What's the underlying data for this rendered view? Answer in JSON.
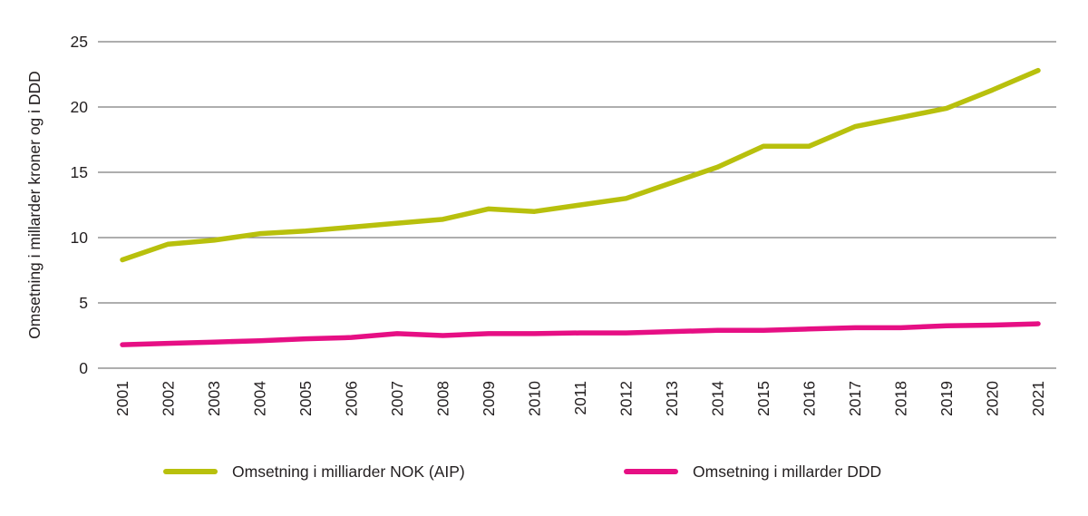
{
  "chart_data": {
    "type": "line",
    "title": "",
    "xlabel": "",
    "ylabel": "Omsetning i millarder kroner og i DDD",
    "x": [
      2001,
      2002,
      2003,
      2004,
      2005,
      2006,
      2007,
      2008,
      2009,
      2010,
      2011,
      2012,
      2013,
      2014,
      2015,
      2016,
      2017,
      2018,
      2019,
      2020,
      2021
    ],
    "series": [
      {
        "name": "Omsetning i milliarder NOK (AIP)",
        "color": "#b8c00d",
        "values": [
          8.3,
          9.5,
          9.8,
          10.3,
          10.5,
          10.8,
          11.1,
          11.4,
          12.2,
          12.0,
          12.5,
          13.0,
          14.2,
          15.4,
          17.0,
          17.0,
          18.5,
          19.2,
          19.9,
          21.3,
          22.8
        ]
      },
      {
        "name": "Omsetning i millarder DDD",
        "color": "#e60f84",
        "values": [
          1.8,
          1.9,
          2.0,
          2.1,
          2.25,
          2.35,
          2.65,
          2.5,
          2.65,
          2.65,
          2.7,
          2.7,
          2.8,
          2.9,
          2.9,
          3.0,
          3.1,
          3.1,
          3.25,
          3.3,
          3.4
        ]
      }
    ],
    "ylim": [
      0,
      25
    ],
    "yticks": [
      0,
      5,
      10,
      15,
      20,
      25
    ],
    "grid": "horizontal",
    "gridline_color": "#7d7d7d",
    "legend_position": "bottom"
  },
  "legend": {
    "item1": "Omsetning i milliarder NOK (AIP)",
    "item2": "Omsetning i millarder DDD"
  }
}
